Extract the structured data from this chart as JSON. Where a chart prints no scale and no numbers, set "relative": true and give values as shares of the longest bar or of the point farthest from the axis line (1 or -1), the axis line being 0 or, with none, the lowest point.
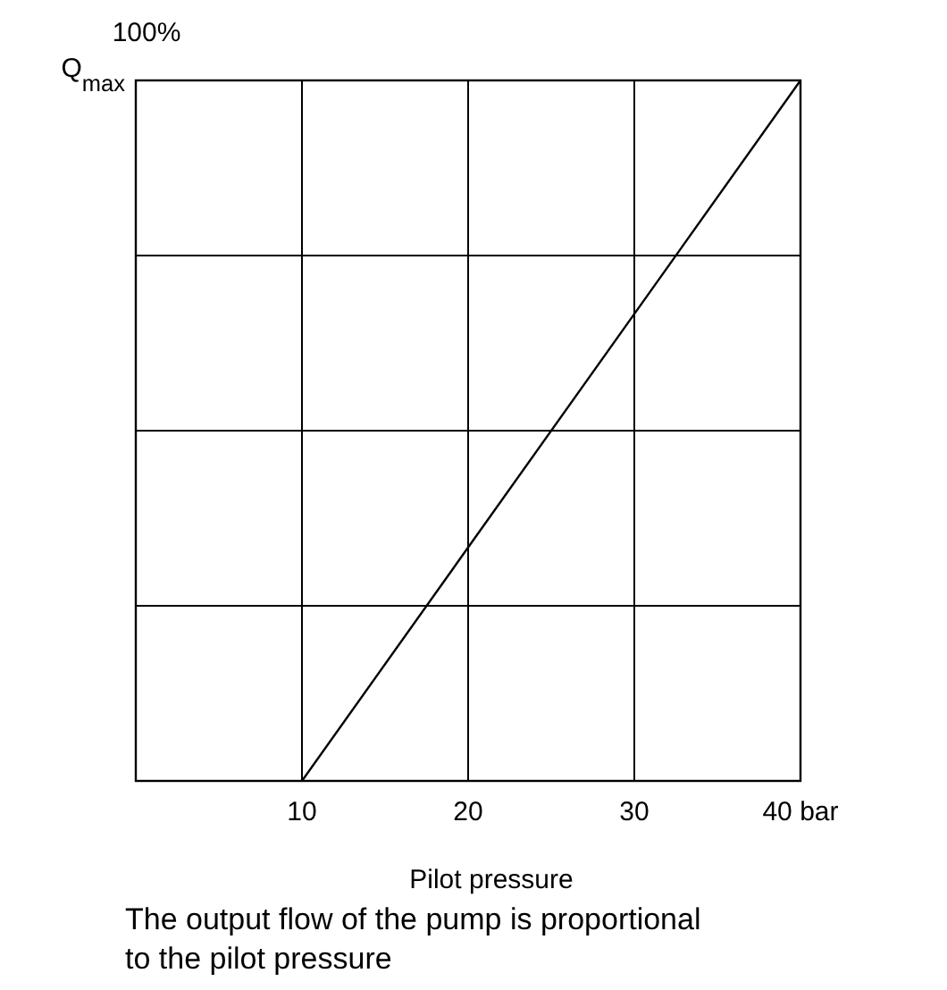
{
  "chart_data": {
    "type": "line",
    "relative": true,
    "ylabel": "100%",
    "xlabel": "Pilot pressure",
    "annotations": [
      "Q$_{max}$",
      "The output flow of the pump is proportional to the pilot pressure"
    ],
    "x": [
      10,
      40
    ],
    "series": [
      {
        "color": "#000000",
        "values": [
          0,
          1
        ]
      }
    ],
    "xlim": [
      0,
      40
    ],
    "xticks": [
      {
        "value": 0,
        "label": null
      },
      10,
      20,
      30,
      {
        "value": 40,
        "label": "40 bar"
      }
    ],
    "grid": true,
    "marker": "none",
    "line_style": "solid"
  }
}
